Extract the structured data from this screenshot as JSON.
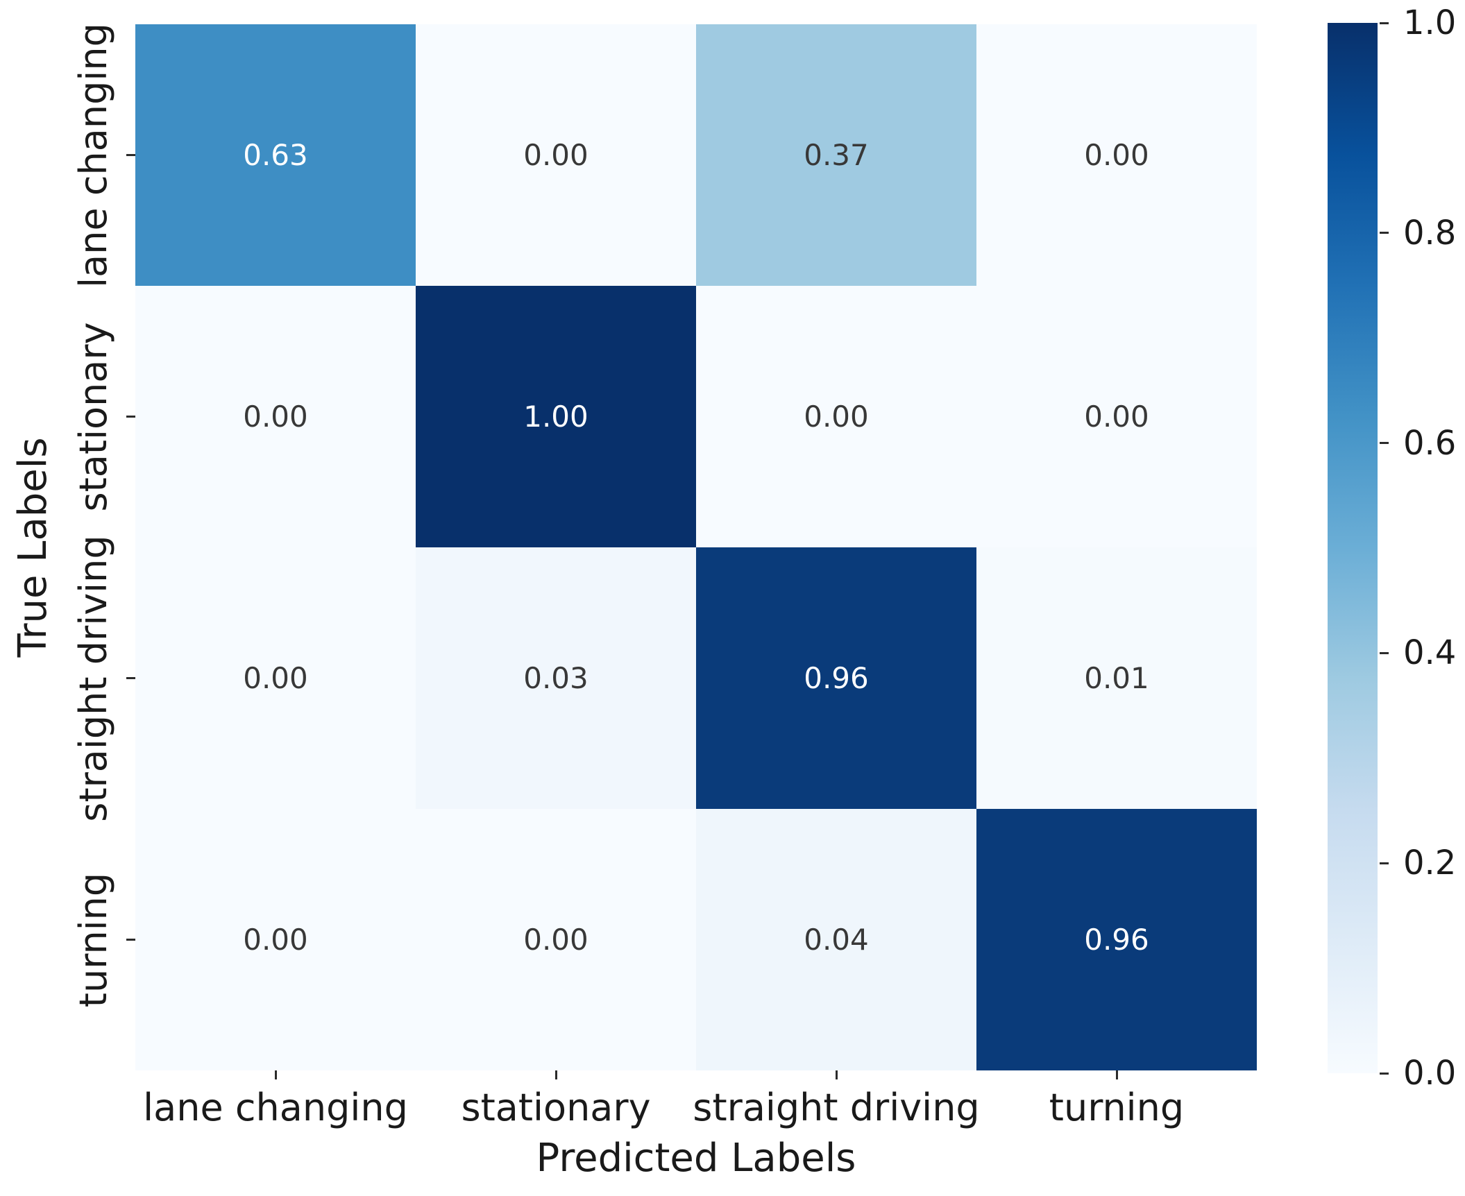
{
  "chart_data": {
    "type": "heatmap",
    "title": "",
    "xlabel": "Predicted Labels",
    "ylabel": "True Labels",
    "x_categories": [
      "lane changing",
      "stationary",
      "straight driving",
      "turning"
    ],
    "y_categories": [
      "lane changing",
      "stationary",
      "straight driving",
      "turning"
    ],
    "rows": [
      [
        0.63,
        0.0,
        0.37,
        0.0
      ],
      [
        0.0,
        1.0,
        0.0,
        0.0
      ],
      [
        0.0,
        0.03,
        0.96,
        0.01
      ],
      [
        0.0,
        0.0,
        0.04,
        0.96
      ]
    ],
    "cell_text": [
      [
        "0.63",
        "0.00",
        "0.37",
        "0.00"
      ],
      [
        "0.00",
        "1.00",
        "0.00",
        "0.00"
      ],
      [
        "0.00",
        "0.03",
        "0.96",
        "0.01"
      ],
      [
        "0.00",
        "0.00",
        "0.04",
        "0.96"
      ]
    ],
    "cell_colors": [
      [
        "#3e8ec4",
        "#f7fbff",
        "#9fcae1",
        "#f7fbff"
      ],
      [
        "#f7fbff",
        "#08306b",
        "#f7fbff",
        "#f7fbff"
      ],
      [
        "#f7fbff",
        "#f1f7fd",
        "#0a3b7a",
        "#f5fafe"
      ],
      [
        "#f7fbff",
        "#f7fbff",
        "#eff6fc",
        "#0a3b7a"
      ]
    ],
    "cell_text_colors": [
      [
        "#ffffff",
        "#383838",
        "#383838",
        "#383838"
      ],
      [
        "#383838",
        "#ffffff",
        "#383838",
        "#383838"
      ],
      [
        "#383838",
        "#383838",
        "#ffffff",
        "#383838"
      ],
      [
        "#383838",
        "#383838",
        "#383838",
        "#ffffff"
      ]
    ],
    "colormap": "Blues",
    "colormap_stops": [
      "#f7fbff",
      "#deebf7",
      "#c6dbef",
      "#9ecae1",
      "#6baed6",
      "#4292c6",
      "#2171b5",
      "#08519c",
      "#08306b"
    ],
    "vmin": 0.0,
    "vmax": 1.0,
    "grid": false,
    "legend_position": "colorbar-right",
    "colorbar_ticks": [
      "1.0",
      "0.8",
      "0.6",
      "0.4",
      "0.2",
      "0.0"
    ]
  },
  "colors": {
    "background": "#ffffff",
    "tick_color": "#2b2b2b",
    "label_color": "#1a1a1a"
  }
}
